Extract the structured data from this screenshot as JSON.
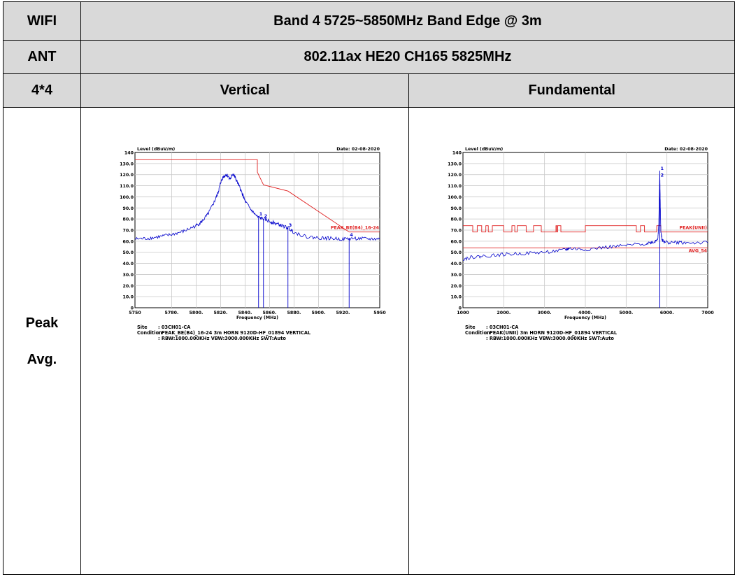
{
  "table": {
    "r1c1": "WIFI",
    "r1c2": "Band 4 5725~5850MHz Band Edge @ 3m",
    "r2c1": "ANT",
    "r2c2": "802.11ax HE20 CH165 5825MHz",
    "r3c1": "4*4",
    "r3c2": "Vertical",
    "r3c3": "Fundamental",
    "row_label_1": "Peak",
    "row_label_2": "Avg."
  },
  "colors": {
    "trace": "#0000cc",
    "limit": "#e02020",
    "grid": "#c8c8c8",
    "header_bg": "#d9d9d9"
  },
  "chart_data": [
    {
      "type": "line",
      "ylabel": "Level (dBuV/m)",
      "date_label": "Date: 02-08-2020",
      "xlabel": "Frequency (MHz)",
      "xlim": [
        5750,
        5950
      ],
      "ylim": [
        0,
        140
      ],
      "yticks": [
        0,
        10,
        20,
        30,
        40,
        50,
        60,
        70,
        80,
        90,
        100,
        110,
        120,
        130,
        140
      ],
      "ytick_labels": [
        "0",
        "10.0",
        "20.0",
        "30.0",
        "40.0",
        "50.0",
        "60.0",
        "70.0",
        "80.0",
        "90.0",
        "100.0",
        "110.0",
        "120.0",
        "130.0",
        "140"
      ],
      "xticks": [
        5750,
        5780,
        5800,
        5820,
        5840,
        5860,
        5880,
        5900,
        5920,
        5950
      ],
      "xtick_labels": [
        "5750",
        "5780.",
        "5800.",
        "5820.",
        "5840.",
        "5860.",
        "5880.",
        "5900.",
        "5920.",
        "5950"
      ],
      "grid": true,
      "series": [
        {
          "kind": "limit",
          "x": [
            5750,
            5850,
            5850,
            5855,
            5875,
            5925,
            5950
          ],
          "y": [
            133.5,
            133.5,
            122.2,
            110.8,
            105.2,
            68.3,
            68.3
          ]
        },
        {
          "kind": "trace",
          "x": [
            5750,
            5760,
            5770,
            5780,
            5790,
            5800,
            5805,
            5810,
            5815,
            5818,
            5820,
            5822,
            5825,
            5828,
            5830,
            5832,
            5835,
            5838,
            5840,
            5845,
            5850,
            5855,
            5860,
            5865,
            5870,
            5875,
            5880,
            5890,
            5900,
            5910,
            5920,
            5930,
            5940,
            5950
          ],
          "y": [
            62,
            62.5,
            64,
            66,
            69,
            74,
            78,
            85,
            96,
            104,
            113,
            118,
            120,
            116,
            121,
            117,
            110,
            102,
            96,
            88,
            82,
            80,
            78,
            76,
            74,
            72,
            68,
            64,
            63,
            62.5,
            62,
            62.5,
            62,
            62
          ]
        }
      ],
      "markers": [
        {
          "label": "1",
          "x": 5851,
          "y": 82
        },
        {
          "label": "2",
          "x": 5855,
          "y": 80
        },
        {
          "label": "3",
          "x": 5875,
          "y": 72
        },
        {
          "label": "4",
          "x": 5925,
          "y": 63
        }
      ],
      "limit_label": "PEAK_BE(B4)_16-24",
      "site_key": "Site",
      "site_value": ": 03CH01-CA",
      "condition_key": "Condition",
      "condition_value": ": PEAK_BE(B4)_16-24 3m HORN 9120D-HF_01894 VERTICAL",
      "settings_value": ": RBW:1000.000KHz VBW:3000.000KHz SWT:Auto"
    },
    {
      "type": "line",
      "ylabel": "Level (dBuV/m)",
      "date_label": "Date: 02-08-2020",
      "xlabel": "Frequency (MHz)",
      "xlim": [
        1000,
        7000
      ],
      "ylim": [
        0,
        140
      ],
      "yticks": [
        0,
        10,
        20,
        30,
        40,
        50,
        60,
        70,
        80,
        90,
        100,
        110,
        120,
        130,
        140
      ],
      "ytick_labels": [
        "0",
        "10.0",
        "20.0",
        "30.0",
        "40.0",
        "50.0",
        "60.0",
        "70.0",
        "80.0",
        "90.0",
        "100.0",
        "110.0",
        "120.0",
        "130.0",
        "140"
      ],
      "xticks": [
        1000,
        2000,
        3000,
        4000,
        5000,
        6000,
        7000
      ],
      "xtick_labels": [
        "1000",
        "2000.",
        "3000.",
        "4000.",
        "5000.",
        "6000.",
        "7000"
      ],
      "grid": true,
      "series": [
        {
          "kind": "limit",
          "x": [
            1000,
            1240,
            1240,
            1350,
            1350,
            1460,
            1460,
            1560,
            1560,
            1620,
            1620,
            1720,
            1720,
            2000,
            2000,
            2200,
            2200,
            2270,
            2270,
            2330,
            2330,
            2550,
            2550,
            2730,
            2730,
            2920,
            2920,
            3280,
            3280,
            3300,
            3300,
            3320,
            3320,
            3400,
            3400,
            4000,
            4000,
            5250,
            5250,
            5350,
            5350,
            5450,
            5450,
            5750,
            5750,
            5850,
            5850,
            6050,
            6050,
            7000
          ],
          "y": [
            74,
            74,
            68.3,
            68.3,
            74,
            74,
            68.3,
            68.3,
            74,
            74,
            68.3,
            68.3,
            74,
            74,
            68.3,
            68.3,
            74,
            74,
            68.3,
            68.3,
            74,
            74,
            68.3,
            68.3,
            74,
            74,
            68.3,
            68.3,
            74,
            74,
            68.3,
            68.3,
            74,
            74,
            68.3,
            68.3,
            74,
            74,
            68.3,
            68.3,
            74,
            74,
            68.3,
            68.3,
            74,
            74,
            68.3,
            68.3,
            68.3,
            68.3
          ]
        },
        {
          "kind": "limit",
          "x": [
            1000,
            7000
          ],
          "y": [
            54,
            54
          ]
        },
        {
          "kind": "trace",
          "x": [
            1000,
            1200,
            1500,
            2000,
            2500,
            3000,
            3500,
            3600,
            4000,
            4500,
            5000,
            5500,
            5700,
            5780,
            5800,
            5815,
            5825,
            5835,
            5850,
            5880,
            5950,
            6200,
            6500,
            7000
          ],
          "y": [
            44,
            45.5,
            46.5,
            48,
            49,
            50,
            52,
            53.5,
            52.5,
            54.5,
            56,
            58,
            59.5,
            63,
            75,
            105,
            123,
            98,
            70,
            61,
            59,
            59,
            58.5,
            58.5
          ]
        }
      ],
      "markers": [
        {
          "label": "1",
          "x": 5825,
          "y": 123
        },
        {
          "label": "2",
          "x": 5825,
          "y": 117
        }
      ],
      "limit_label": "PEAK(UNII)",
      "limit_label_2": "AVG_54",
      "site_key": "Site",
      "site_value": ": 03CH01-CA",
      "condition_key": "Condition",
      "condition_value": ": PEAK(UNII) 3m HORN 9120D-HF_01894 VERTICAL",
      "settings_value": ": RBW:1000.000KHz VBW:3000.000KHz SWT:Auto"
    }
  ]
}
